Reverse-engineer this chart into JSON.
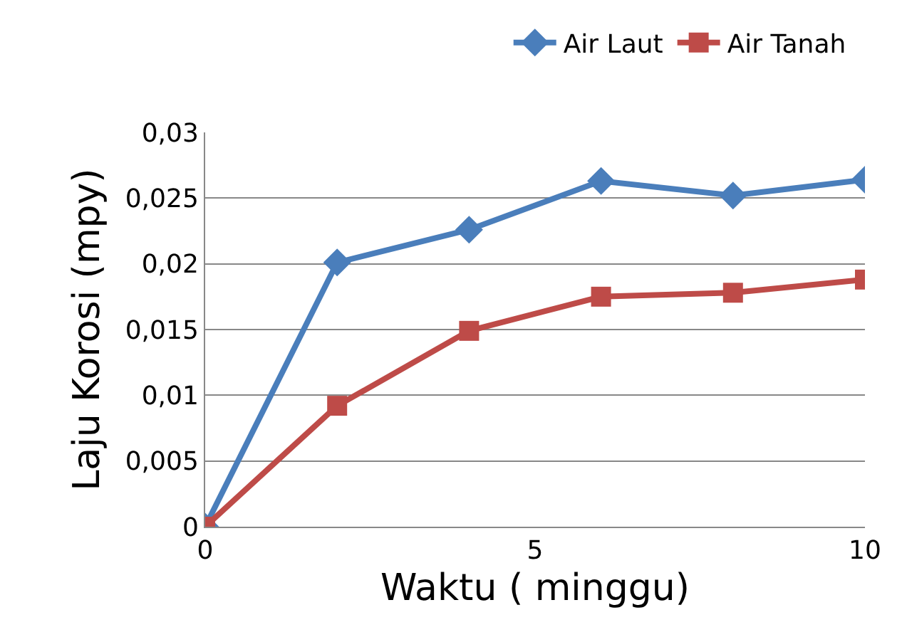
{
  "chart_data": {
    "type": "line",
    "xlabel": "Waktu ( minggu)",
    "ylabel": "Laju Korosi (mpy)",
    "x": [
      0,
      2,
      4,
      6,
      8,
      10
    ],
    "series": [
      {
        "name": "Air Laut",
        "color": "#4a7ebb",
        "marker": "diamond",
        "values": [
          0,
          0.0201,
          0.0226,
          0.0263,
          0.0252,
          0.0264
        ]
      },
      {
        "name": "Air Tanah",
        "color": "#be4b48",
        "marker": "square",
        "values": [
          0,
          0.0092,
          0.0149,
          0.0175,
          0.0178,
          0.0188
        ]
      }
    ],
    "xlim": [
      0,
      10
    ],
    "xticks": [
      0,
      5,
      10
    ],
    "ylim": [
      0,
      0.03
    ],
    "yticks": [
      {
        "value": 0,
        "label": "0"
      },
      {
        "value": 0.005,
        "label": "0,005"
      },
      {
        "value": 0.01,
        "label": "0,01"
      },
      {
        "value": 0.015,
        "label": "0,015"
      },
      {
        "value": 0.02,
        "label": "0,02"
      },
      {
        "value": 0.025,
        "label": "0,025"
      },
      {
        "value": 0.03,
        "label": "0,03"
      }
    ],
    "grid": "y",
    "legend": "top",
    "line_style": "solid"
  }
}
